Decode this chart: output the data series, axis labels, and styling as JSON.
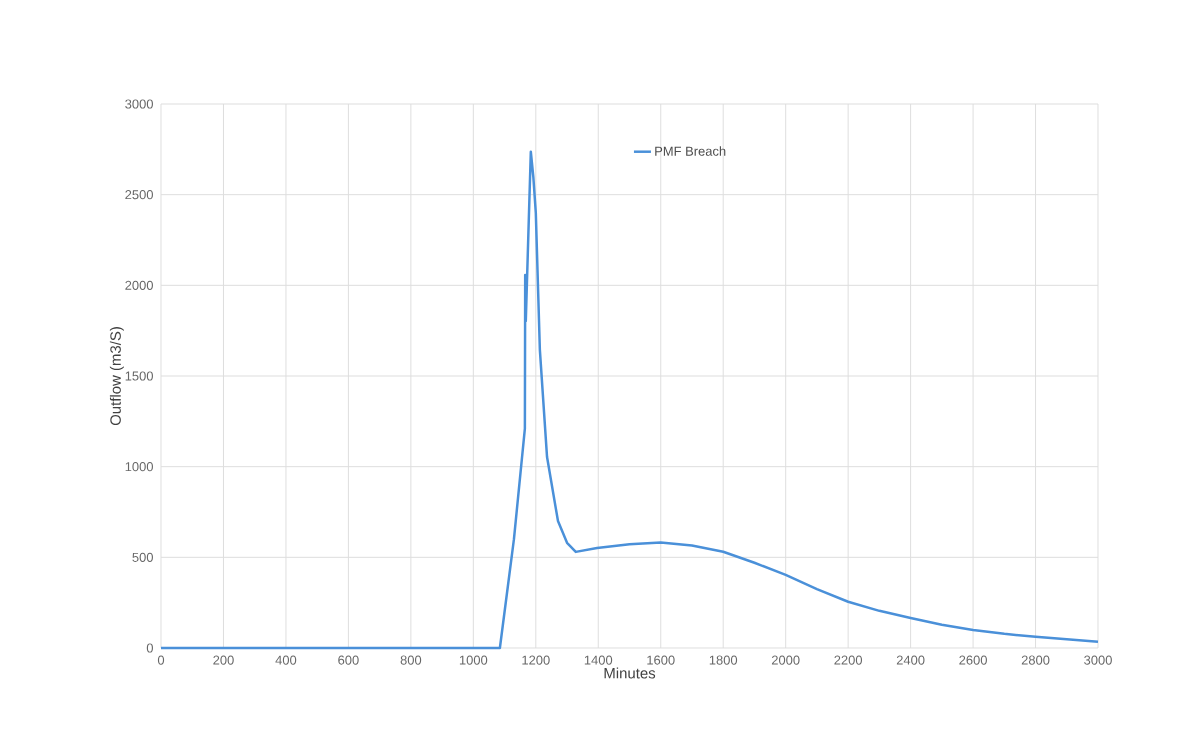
{
  "chart_data": {
    "type": "line",
    "xlabel": "Minutes",
    "ylabel": "Outflow (m3/S)",
    "xlim": [
      0,
      3000
    ],
    "xticks": [
      0,
      200,
      400,
      600,
      800,
      1000,
      1200,
      1400,
      1600,
      1800,
      2000,
      2200,
      2400,
      2600,
      2800,
      3000
    ],
    "ylim": [
      0,
      3000
    ],
    "yticks": [
      0,
      500,
      1000,
      1500,
      2000,
      2500,
      3000
    ],
    "grid": true,
    "legend": "top",
    "marker": "none",
    "line_style": "solid",
    "series": [
      {
        "name": "PMF Breach",
        "color": "#4a90d9",
        "x": [
          0,
          1085,
          1130,
          1165,
          1166,
          1168,
          1184,
          1192,
          1200,
          1213,
          1236,
          1271,
          1300,
          1328,
          1396,
          1500,
          1600,
          1700,
          1800,
          1900,
          2000,
          2100,
          2200,
          2300,
          2400,
          2500,
          2600,
          2700,
          2800,
          2900,
          3000
        ],
        "values": [
          0,
          0,
          600,
          1210,
          2057,
          1804,
          2737,
          2600,
          2400,
          1644,
          1053,
          700,
          580,
          530,
          552,
          572,
          582,
          565,
          531,
          470,
          403,
          325,
          255,
          205,
          165,
          128,
          99,
          78,
          62,
          48,
          35
        ]
      }
    ]
  }
}
